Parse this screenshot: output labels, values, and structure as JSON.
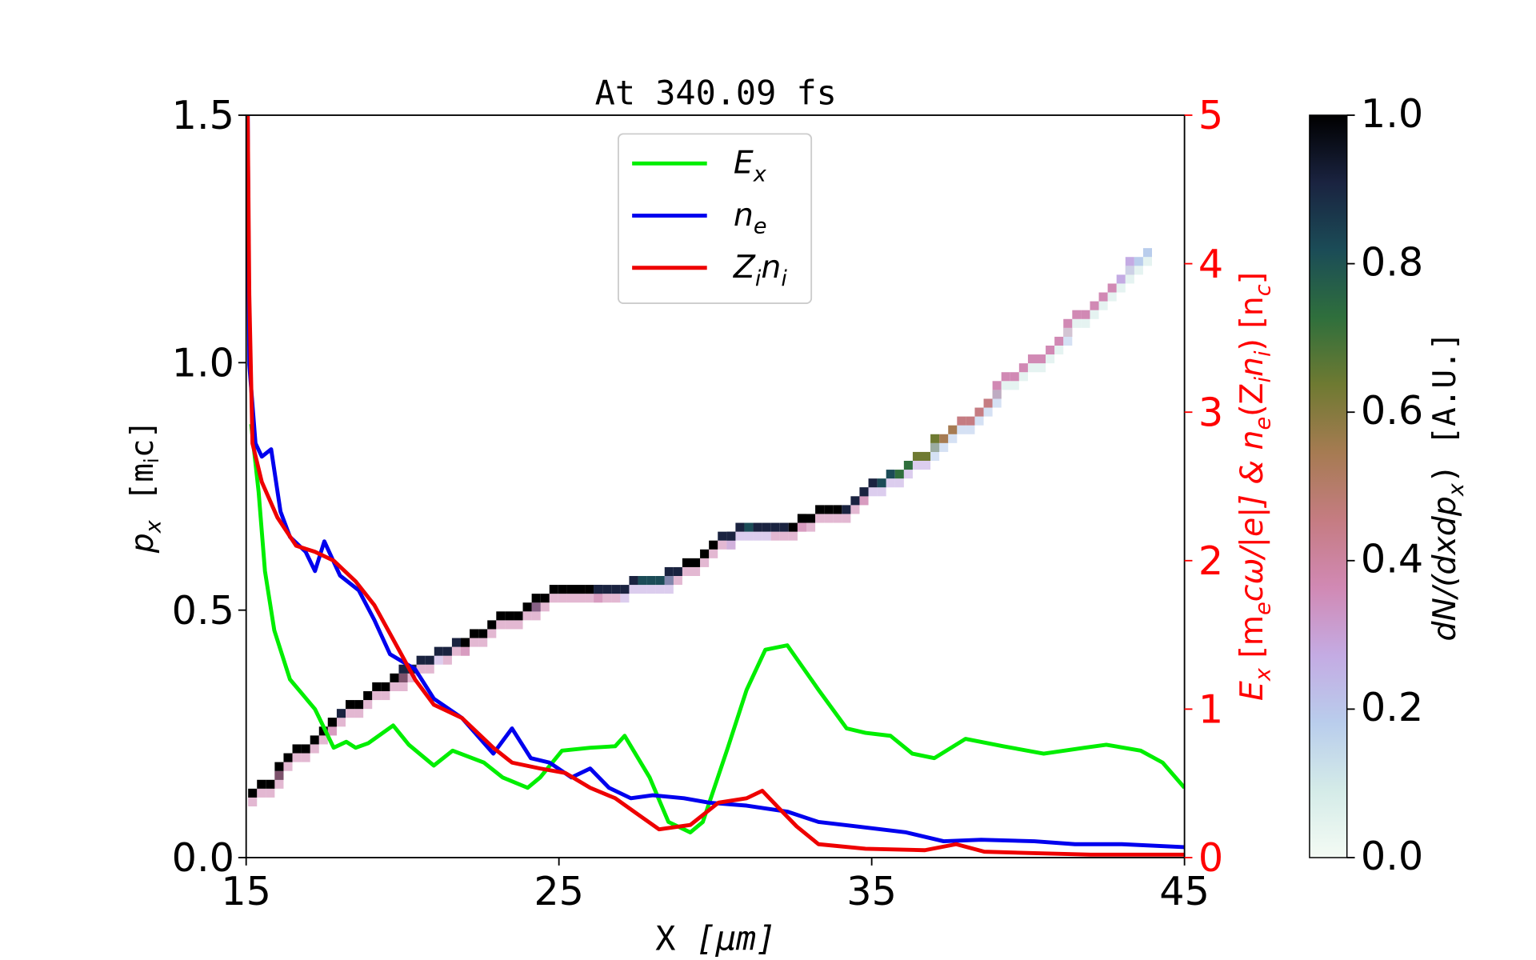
{
  "chart_data": {
    "type": "line",
    "title": "At 340.09 fs",
    "xlabel": {
      "main": "X ",
      "unit": "[μm]"
    },
    "ylabel_left": {
      "p": "p",
      "p_sub": "x",
      "unit_a": " [m",
      "unit_sub": "i",
      "unit_b": "c]"
    },
    "ylabel_right": {
      "a": "E",
      "a_sub": "x",
      "b": " [m",
      "b_sub": "e",
      "c": "cω/|e|]  &  n",
      "c_sub": "e",
      "d": "(Z",
      "d_sub": "i",
      "e": "n",
      "e_sub": "i",
      "f": ")  [n",
      "f_sub": "c",
      "g": "]"
    },
    "colorbar_label": {
      "a": "dN/(dxdp",
      "a_sub": "x",
      "b": ")  [A.U.]"
    },
    "xlim": [
      15,
      45
    ],
    "ylim_left": [
      0,
      1.5
    ],
    "ylim_right": [
      0,
      5
    ],
    "colorbar_lim": [
      0,
      1
    ],
    "x_ticks": [
      "15",
      "25",
      "35",
      "45"
    ],
    "x_tick_values": [
      15,
      25,
      35,
      45
    ],
    "y_left_ticks": [
      "0.0",
      "0.5",
      "1.0",
      "1.5"
    ],
    "y_left_tick_values": [
      0,
      0.5,
      1.0,
      1.5
    ],
    "y_right_ticks": [
      "0",
      "1",
      "2",
      "3",
      "4",
      "5"
    ],
    "y_right_tick_values": [
      0,
      1,
      2,
      3,
      4,
      5
    ],
    "colorbar_ticks": [
      "0.0",
      "0.2",
      "0.4",
      "0.6",
      "0.8",
      "1.0"
    ],
    "colorbar_tick_values": [
      0,
      0.2,
      0.4,
      0.6,
      0.8,
      1.0
    ],
    "legend": {
      "placement": "top-center",
      "entries": [
        {
          "name": "E",
          "sub": "x",
          "color": "#00ee00"
        },
        {
          "name": "n",
          "sub": "e",
          "color": "#0000ee"
        },
        {
          "name": "Z",
          "sub": "i",
          "name2": "n",
          "sub2": "i",
          "color": "#ee0000"
        }
      ]
    },
    "series": [
      {
        "name": "Ex",
        "axis": "right",
        "color": "#00ee00",
        "x": [
          15.16,
          15.4,
          15.6,
          15.9,
          16.4,
          17.2,
          17.8,
          18.2,
          18.5,
          18.9,
          19.7,
          20.2,
          21,
          21.6,
          22.6,
          23.2,
          24,
          24.4,
          25.1,
          26,
          26.8,
          27.1,
          27.9,
          28.5,
          29.2,
          29.6,
          30.4,
          31,
          31.6,
          32.3,
          33.3,
          34.2,
          34.8,
          35.6,
          36.3,
          37,
          38,
          39.2,
          40.5,
          41.8,
          42.5,
          43.6,
          44.3,
          45
        ],
        "y": [
          2.92,
          2.46,
          1.93,
          1.53,
          1.2,
          1.0,
          0.74,
          0.78,
          0.74,
          0.77,
          0.89,
          0.76,
          0.62,
          0.72,
          0.64,
          0.54,
          0.47,
          0.54,
          0.72,
          0.74,
          0.75,
          0.82,
          0.54,
          0.24,
          0.17,
          0.24,
          0.74,
          1.13,
          1.4,
          1.43,
          1.13,
          0.87,
          0.84,
          0.82,
          0.7,
          0.67,
          0.8,
          0.75,
          0.7,
          0.74,
          0.76,
          0.72,
          0.64,
          0.47
        ]
      },
      {
        "name": "ne",
        "axis": "right",
        "color": "#0000ee",
        "x": [
          15.05,
          15.1,
          15.3,
          15.5,
          15.8,
          16.1,
          16.4,
          16.9,
          17.2,
          17.5,
          18,
          18.6,
          19.1,
          19.6,
          20.4,
          21,
          21.9,
          22.9,
          23.5,
          24.1,
          24.7,
          25.4,
          26,
          26.6,
          27.3,
          28,
          29,
          29.8,
          31,
          32.3,
          33.3,
          34.5,
          36.1,
          37.3,
          38.5,
          40.2,
          41.5,
          43,
          45
        ],
        "y": [
          5.0,
          3.32,
          2.79,
          2.7,
          2.75,
          2.33,
          2.16,
          2.06,
          1.93,
          2.13,
          1.9,
          1.8,
          1.6,
          1.37,
          1.27,
          1.07,
          0.94,
          0.7,
          0.87,
          0.67,
          0.64,
          0.54,
          0.6,
          0.47,
          0.4,
          0.42,
          0.4,
          0.37,
          0.35,
          0.31,
          0.24,
          0.21,
          0.17,
          0.11,
          0.12,
          0.11,
          0.09,
          0.09,
          0.07
        ]
      },
      {
        "name": "Zini",
        "axis": "right",
        "color": "#ee0000",
        "x": [
          15.05,
          15.1,
          15.2,
          15.5,
          16,
          16.6,
          17.2,
          17.8,
          18.5,
          19.1,
          19.7,
          20.4,
          21,
          21.9,
          22.9,
          23.5,
          24.4,
          25.2,
          26,
          26.8,
          27.4,
          28.2,
          29.2,
          30.1,
          31,
          31.5,
          32,
          32.6,
          33.3,
          34.8,
          36.7,
          37.7,
          38.6,
          40.2,
          42,
          45
        ],
        "y": [
          5.0,
          3.79,
          2.79,
          2.53,
          2.29,
          2.1,
          2.06,
          2.0,
          1.86,
          1.7,
          1.47,
          1.2,
          1.03,
          0.94,
          0.74,
          0.64,
          0.6,
          0.57,
          0.47,
          0.4,
          0.31,
          0.19,
          0.22,
          0.37,
          0.4,
          0.45,
          0.34,
          0.21,
          0.09,
          0.06,
          0.05,
          0.09,
          0.04,
          0.03,
          0.02,
          0.02
        ]
      }
    ],
    "phase_space": {
      "axis": "left",
      "x": [
        15.2,
        16,
        17,
        18,
        19,
        20,
        21,
        22,
        23,
        24,
        25,
        26,
        27,
        28,
        29,
        30,
        31,
        32,
        33,
        34,
        35,
        36,
        37,
        38,
        39,
        40,
        41,
        42,
        43,
        44
      ],
      "px": [
        0.14,
        0.19,
        0.25,
        0.3,
        0.35,
        0.39,
        0.42,
        0.45,
        0.49,
        0.52,
        0.55,
        0.56,
        0.56,
        0.57,
        0.6,
        0.65,
        0.68,
        0.68,
        0.7,
        0.72,
        0.76,
        0.8,
        0.85,
        0.9,
        0.96,
        1.01,
        1.07,
        1.13,
        1.2,
        1.24
      ],
      "intensity": [
        1.0,
        1.0,
        1.0,
        0.95,
        1.0,
        0.95,
        0.9,
        1.0,
        1.0,
        0.95,
        1.0,
        0.95,
        0.9,
        0.8,
        1.0,
        0.95,
        0.85,
        0.95,
        1.0,
        0.95,
        0.9,
        0.7,
        0.6,
        0.45,
        0.4,
        0.35,
        0.4,
        0.35,
        0.3,
        0.15
      ]
    },
    "colormap": [
      "#f4fbf4",
      "#d4ebe8",
      "#b9cdec",
      "#c4abe3",
      "#d189b4",
      "#c57c82",
      "#a67b52",
      "#6f7a32",
      "#2f6f3c",
      "#1b4c57",
      "#1a2340",
      "#000000"
    ]
  }
}
